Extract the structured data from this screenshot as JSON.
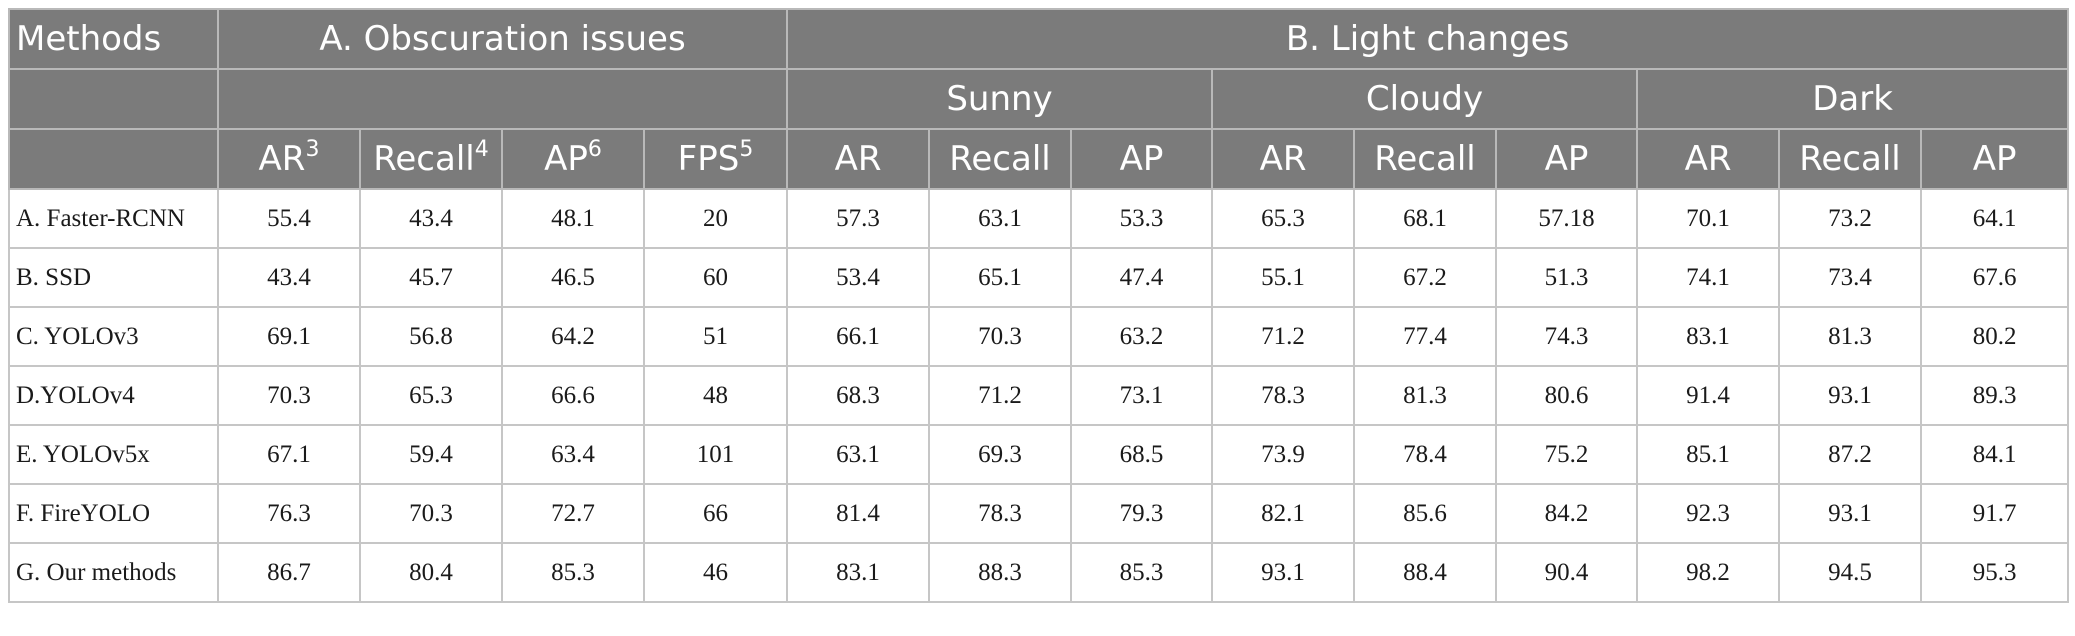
{
  "header": {
    "methods_label": "Methods",
    "group_a": "A. Obscuration issues",
    "group_b": "B. Light changes",
    "conditions": [
      "Sunny",
      "Cloudy",
      "Dark"
    ],
    "obscuration_cols": [
      {
        "label": "AR",
        "sup": "3"
      },
      {
        "label": "Recall",
        "sup": "4"
      },
      {
        "label": "AP",
        "sup": "6"
      },
      {
        "label": "FPS",
        "sup": "5"
      }
    ],
    "light_cols": [
      "AR",
      "Recall",
      "AP",
      "AR",
      "Recall",
      "AP",
      "AR",
      "Recall",
      "AP"
    ]
  },
  "rows": [
    {
      "method": "A. Faster-RCNN",
      "values": [
        "55.4",
        "43.4",
        "48.1",
        "20",
        "57.3",
        "63.1",
        "53.3",
        "65.3",
        "68.1",
        "57.18",
        "70.1",
        "73.2",
        "64.1"
      ]
    },
    {
      "method": "B. SSD",
      "values": [
        "43.4",
        "45.7",
        "46.5",
        "60",
        "53.4",
        "65.1",
        "47.4",
        "55.1",
        "67.2",
        "51.3",
        "74.1",
        "73.4",
        "67.6"
      ]
    },
    {
      "method": "C. YOLOv3",
      "values": [
        "69.1",
        "56.8",
        "64.2",
        "51",
        "66.1",
        "70.3",
        "63.2",
        "71.2",
        "77.4",
        "74.3",
        "83.1",
        "81.3",
        "80.2"
      ]
    },
    {
      "method": "D.YOLOv4",
      "values": [
        "70.3",
        "65.3",
        "66.6",
        "48",
        "68.3",
        "71.2",
        "73.1",
        "78.3",
        "81.3",
        "80.6",
        "91.4",
        "93.1",
        "89.3"
      ]
    },
    {
      "method": "E. YOLOv5x",
      "values": [
        "67.1",
        "59.4",
        "63.4",
        "101",
        "63.1",
        "69.3",
        "68.5",
        "73.9",
        "78.4",
        "75.2",
        "85.1",
        "87.2",
        "84.1"
      ]
    },
    {
      "method": "F. FireYOLO",
      "values": [
        "76.3",
        "70.3",
        "72.7",
        "66",
        "81.4",
        "78.3",
        "79.3",
        "82.1",
        "85.6",
        "84.2",
        "92.3",
        "93.1",
        "91.7"
      ]
    },
    {
      "method": "G. Our methods",
      "values": [
        "86.7",
        "80.4",
        "85.3",
        "46",
        "83.1",
        "88.3",
        "85.3",
        "93.1",
        "88.4",
        "90.4",
        "98.2",
        "94.5",
        "95.3"
      ]
    }
  ]
}
